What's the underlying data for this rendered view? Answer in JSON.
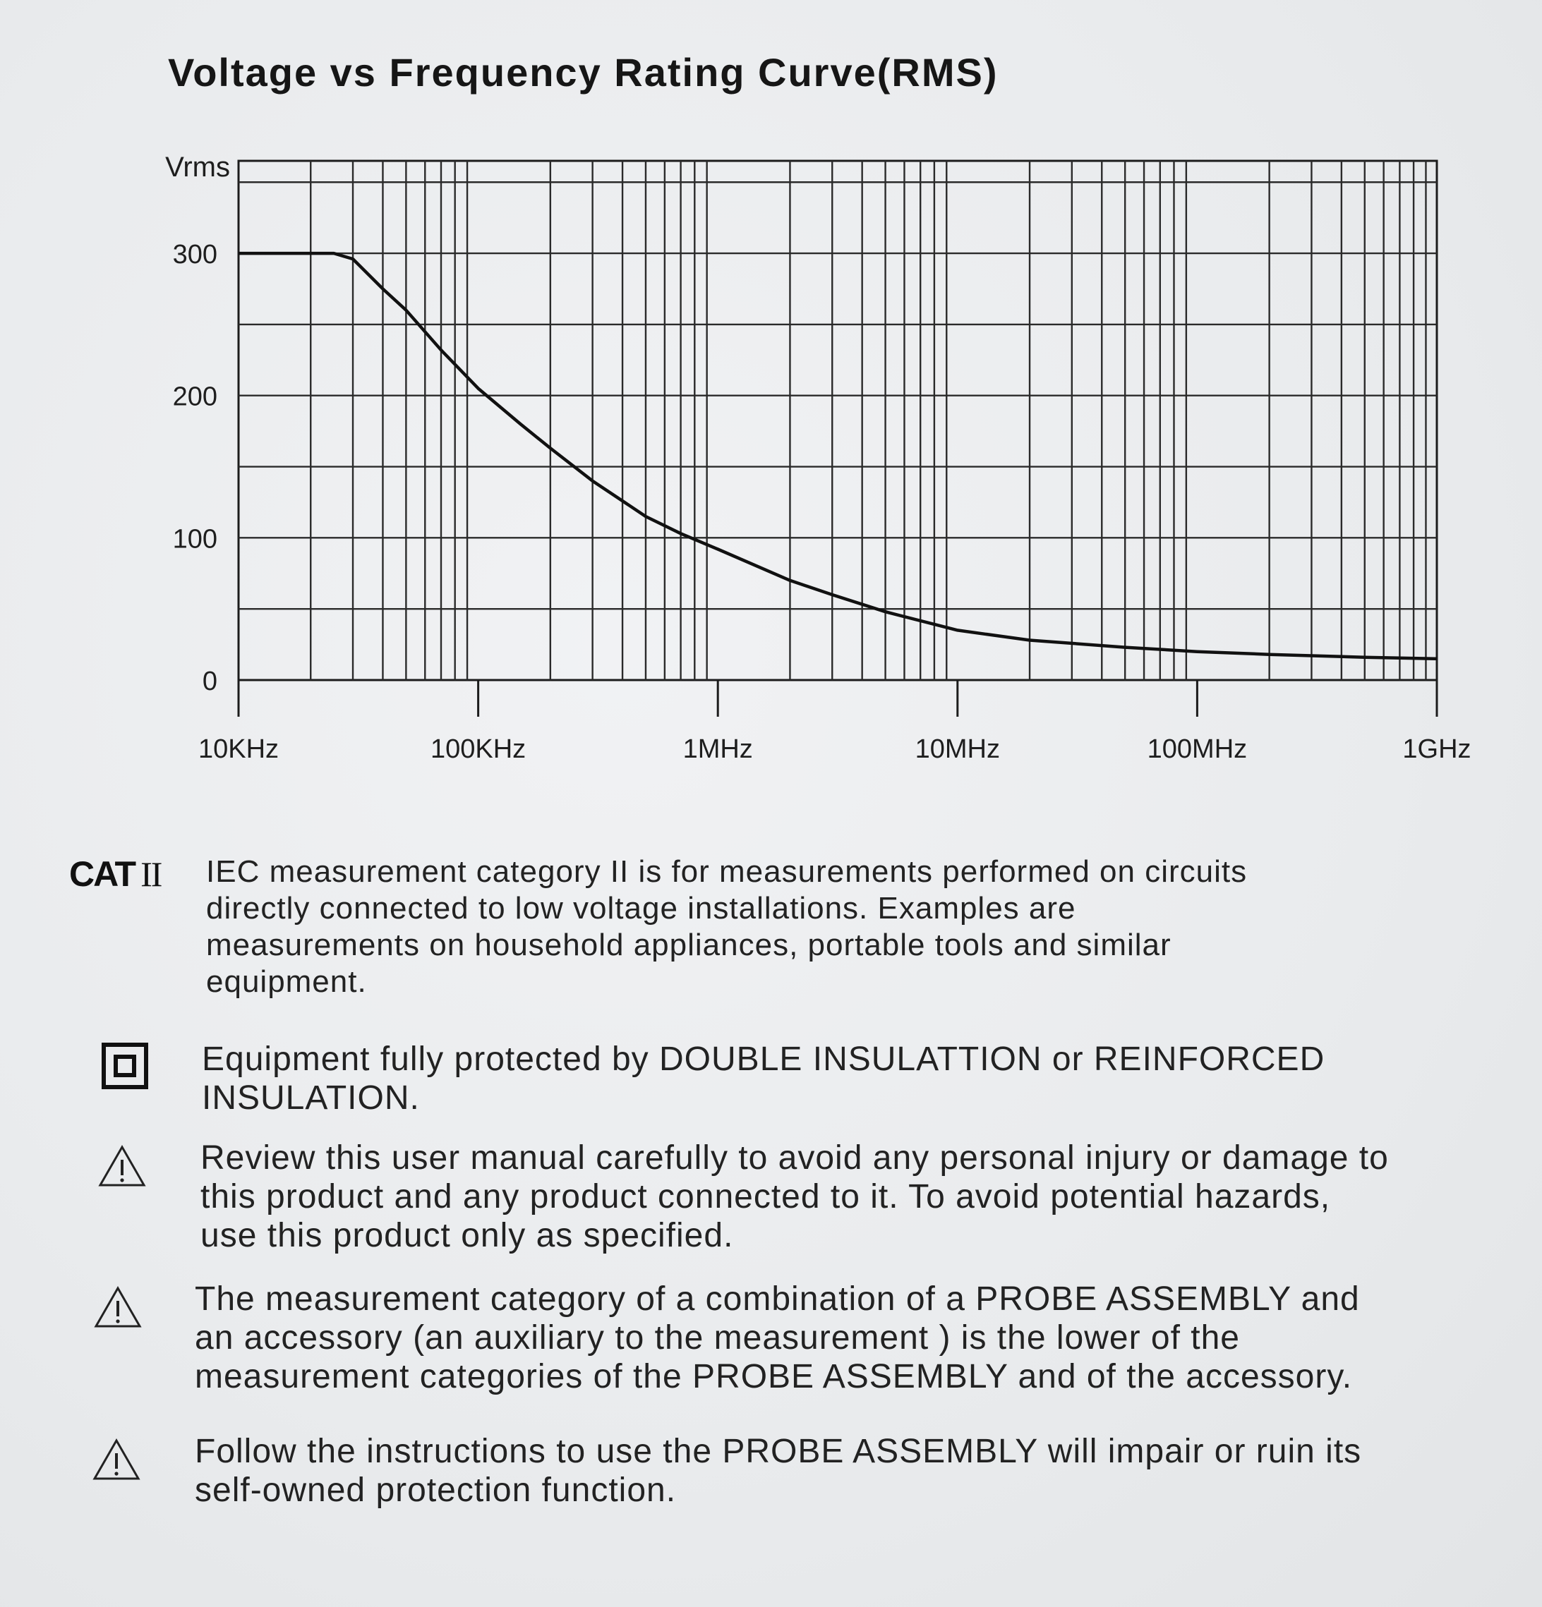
{
  "chart_data": {
    "type": "line",
    "title": "Voltage vs Frequency Rating Curve(RMS)",
    "ylabel": "Vrms",
    "xlabel": "",
    "x_scale": "log",
    "x_ticks": [
      {
        "value": 10000,
        "label": "10KHz"
      },
      {
        "value": 100000,
        "label": "100KHz"
      },
      {
        "value": 1000000,
        "label": "1MHz"
      },
      {
        "value": 10000000,
        "label": "10MHz"
      },
      {
        "value": 100000000,
        "label": "100MHz"
      },
      {
        "value": 1000000000,
        "label": "1GHz"
      }
    ],
    "y_ticks": [
      {
        "value": 0,
        "label": "0"
      },
      {
        "value": 100,
        "label": "100"
      },
      {
        "value": 200,
        "label": "200"
      },
      {
        "value": 300,
        "label": "300"
      }
    ],
    "xlim": [
      10000,
      1000000000
    ],
    "ylim": [
      0,
      365
    ],
    "grid": true,
    "series": [
      {
        "x": [
          10000,
          15000,
          20000,
          25000,
          30000,
          40000,
          50000,
          70000,
          100000,
          150000,
          200000,
          300000,
          500000,
          700000,
          1000000,
          2000000,
          3000000,
          5000000,
          10000000,
          20000000,
          50000000,
          100000000,
          200000000,
          500000000,
          1000000000
        ],
        "y": [
          300,
          300,
          300,
          300,
          296,
          275,
          260,
          232,
          205,
          180,
          163,
          140,
          115,
          103,
          92,
          70,
          60,
          48,
          35,
          28,
          23,
          20,
          18,
          16,
          15
        ]
      }
    ]
  },
  "sections": {
    "cat": {
      "label": "CAT",
      "roman": "II",
      "lines": [
        "IEC measurement category II is for measurements performed on circuits",
        "directly connected to low voltage installations. Examples are",
        "measurements on household appliances, portable tools and similar",
        "equipment."
      ]
    },
    "double_insulation": {
      "icon": "double-insulation-icon",
      "lines": [
        "Equipment fully protected by DOUBLE INSULATTION or REINFORCED",
        "INSULATION."
      ]
    },
    "warning1": {
      "icon": "warning-triangle-icon",
      "lines": [
        "Review this user manual carefully to avoid any personal injury or damage to",
        "this product and any product connected to it. To avoid potential hazards,",
        "use this product only as specified."
      ]
    },
    "warning2": {
      "icon": "warning-triangle-icon",
      "lines": [
        "The measurement category of a combination of a PROBE ASSEMBLY and",
        "an accessory (an auxiliary to the measurement ) is the lower of the",
        "measurement categories of the PROBE ASSEMBLY and of the accessory."
      ]
    },
    "warning3": {
      "icon": "warning-triangle-icon",
      "lines": [
        "Follow the instructions to use the PROBE ASSEMBLY will impair or ruin its",
        "self-owned protection function."
      ]
    }
  }
}
